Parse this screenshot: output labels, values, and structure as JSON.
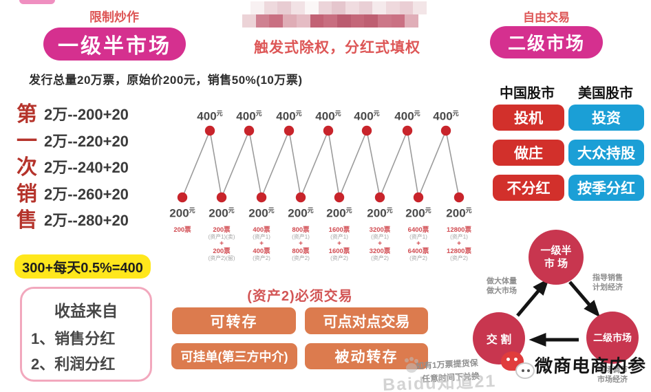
{
  "colors": {
    "accent_pink": "#d5308f",
    "header_red": "#dd5656",
    "title_dark_red": "#b5332b",
    "chart_dot_red": "#c8242b",
    "annotation_red": "#d14b51",
    "orange_button": "#dc7b4e",
    "red_button": "#d2302b",
    "blue_button": "#1b9fd6",
    "highlight_yellow": "#ffe71c",
    "circle_crimson": "#c8364f",
    "box_border_pink": "#f2a8bd"
  },
  "header": {
    "left_tag": "限制炒作",
    "left_pill": "一级半市场",
    "center_caption": "触发式除权，分红式填权",
    "right_tag": "自由交易",
    "right_pill": "二级市场"
  },
  "issue_info": "发行总量20万票，原始价200元，销售50%(10万票)",
  "first_sale": {
    "vertical_title": [
      "第",
      "一",
      "次",
      "销",
      "售"
    ],
    "rows": [
      "2万--200+20",
      "2万--220+20",
      "2万--240+20",
      "2万--260+20",
      "2万--280+20"
    ]
  },
  "yellow_note": "300+每天0.5%=400",
  "income_box": {
    "title": "收益来自",
    "items": [
      "1、销售分红",
      "2、利润分红"
    ]
  },
  "chart_data": {
    "type": "line",
    "title": "",
    "unit": "元",
    "peak_value": "400",
    "trough_value": "200",
    "peak_count": 7,
    "trough_count": 8,
    "y_sequence": [
      200,
      400,
      200,
      400,
      200,
      400,
      200,
      400,
      200,
      400,
      200,
      400,
      200,
      400,
      200
    ],
    "trough_annotations": [
      [
        "200票"
      ],
      [
        "200票",
        "(资产1)(卖)",
        "+",
        "200票",
        "(资产2)(留)"
      ],
      [
        "400票",
        "(资产1)",
        "+",
        "400票",
        "(资产2)"
      ],
      [
        "800票",
        "(资产1)",
        "+",
        "800票",
        "(资产2)"
      ],
      [
        "1600票",
        "(资产1)",
        "+",
        "1600票",
        "(资产2)"
      ],
      [
        "3200票",
        "(资产1)",
        "+",
        "3200票",
        "(资产2)"
      ],
      [
        "6400票",
        "(资产1)",
        "+",
        "6400票",
        "(资产2)"
      ],
      [
        "12800票",
        "(资产1)",
        "+",
        "12800票",
        "(资产2)"
      ]
    ]
  },
  "asset2": {
    "title": "(资产2)必须交易",
    "buttons": [
      "可转存",
      "可点对点交易",
      "可挂单(第三方中介)",
      "被动转存"
    ]
  },
  "markets": {
    "china_header": "中国股市",
    "usa_header": "美国股市",
    "china_items": [
      "投机",
      "做庄",
      "不分红"
    ],
    "usa_items": [
      "投资",
      "大众持股",
      "按季分红"
    ]
  },
  "cycle": {
    "top_circle_line1": "一级半",
    "top_circle_line2": "市 场",
    "left_circle": "交 割",
    "right_circle": "二级市场",
    "left_label1": "做大体量",
    "left_label2": "做大市场",
    "right_label1": "指导销售",
    "right_label2": "计划经济",
    "bottom_label1": "市场调节",
    "bottom_label2": "市场经济"
  },
  "footnote": {
    "line1": "如有1万票提货保",
    "line2": "任意时间下兑换"
  },
  "watermarks": {
    "wechat_text": "微商电商内参",
    "baidu_text": "Baidu知道21"
  },
  "censored_mosaic": {
    "rows": [
      [
        "#f8f1f2",
        "#eed9dd",
        "#e8ccd2",
        "#f2e2e5",
        "#fbf7f7",
        "#ecd4d9",
        "#e5c6cd",
        "#f0dce0",
        "#e9cfd5",
        "#f5eaec",
        "#efd9dd",
        "#eaced4",
        "#f3e5e7"
      ],
      [
        "#ecd3d7",
        "#cf8191",
        "#c97082",
        "#dfadb6",
        "#e5bcc4",
        "#c26275",
        "#c86e80",
        "#bb5c70",
        "#c46779",
        "#be5f72",
        "#cc7788",
        "#ca7183",
        "#e0aeb8"
      ]
    ]
  }
}
